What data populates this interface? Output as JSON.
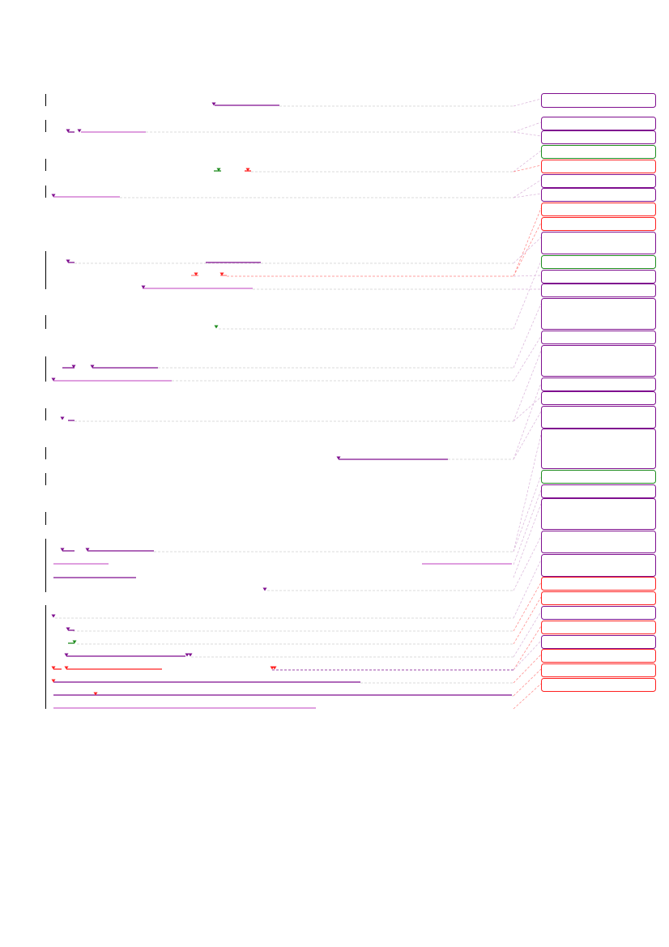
{
  "document": {
    "type": "annotated-document-margin-comments",
    "palette": {
      "purple": "#7f0f8f",
      "light_purple": "#cc66cc",
      "green": "#1e8c1e",
      "red": "#ff2020",
      "light_red": "#ff8080",
      "connector_gray": "#cfcfcf",
      "line_marker": "#000000"
    }
  },
  "paragraph_markers": [
    {
      "id": "p1"
    },
    {
      "id": "p2"
    },
    {
      "id": "p3"
    },
    {
      "id": "p4"
    },
    {
      "id": "p5"
    },
    {
      "id": "p6"
    },
    {
      "id": "p7"
    },
    {
      "id": "p8"
    },
    {
      "id": "p9"
    },
    {
      "id": "p10"
    },
    {
      "id": "p11"
    },
    {
      "id": "p12"
    },
    {
      "id": "p13"
    },
    {
      "id": "p14"
    }
  ],
  "annotations": [
    {
      "id": "a1",
      "kind": "comment",
      "color": "purple"
    },
    {
      "id": "a2",
      "kind": "comment",
      "color": "purple"
    },
    {
      "id": "a3",
      "kind": "comment",
      "color": "purple"
    },
    {
      "id": "a4",
      "kind": "insertion",
      "color": "green"
    },
    {
      "id": "a5",
      "kind": "deletion",
      "color": "red"
    },
    {
      "id": "a6",
      "kind": "comment",
      "color": "purple"
    },
    {
      "id": "a7",
      "kind": "comment",
      "color": "purple"
    },
    {
      "id": "a8",
      "kind": "deletion",
      "color": "red"
    },
    {
      "id": "a9",
      "kind": "deletion",
      "color": "red"
    },
    {
      "id": "a10",
      "kind": "comment",
      "color": "purple"
    },
    {
      "id": "a11",
      "kind": "insertion",
      "color": "green"
    },
    {
      "id": "a12",
      "kind": "comment",
      "color": "purple"
    },
    {
      "id": "a13",
      "kind": "comment",
      "color": "purple"
    },
    {
      "id": "a14",
      "kind": "comment",
      "color": "purple"
    },
    {
      "id": "a15",
      "kind": "comment",
      "color": "purple"
    },
    {
      "id": "a16",
      "kind": "comment",
      "color": "purple"
    },
    {
      "id": "a17",
      "kind": "comment",
      "color": "purple"
    },
    {
      "id": "a18",
      "kind": "comment",
      "color": "purple"
    },
    {
      "id": "a19",
      "kind": "comment",
      "color": "purple"
    },
    {
      "id": "a20",
      "kind": "comment",
      "color": "purple"
    },
    {
      "id": "a21",
      "kind": "insertion",
      "color": "green"
    },
    {
      "id": "a22",
      "kind": "comment",
      "color": "purple"
    },
    {
      "id": "a23",
      "kind": "comment",
      "color": "purple"
    },
    {
      "id": "a24",
      "kind": "comment",
      "color": "purple"
    },
    {
      "id": "a25",
      "kind": "comment",
      "color": "purple"
    },
    {
      "id": "a26",
      "kind": "deletion",
      "color": "red"
    },
    {
      "id": "a27",
      "kind": "deletion",
      "color": "red"
    },
    {
      "id": "a28",
      "kind": "comment",
      "color": "purple"
    },
    {
      "id": "a29",
      "kind": "deletion",
      "color": "red"
    },
    {
      "id": "a30",
      "kind": "comment",
      "color": "purple"
    },
    {
      "id": "a31",
      "kind": "deletion",
      "color": "red"
    },
    {
      "id": "a32",
      "kind": "deletion",
      "color": "red"
    },
    {
      "id": "a33",
      "kind": "deletion",
      "color": "red"
    }
  ]
}
